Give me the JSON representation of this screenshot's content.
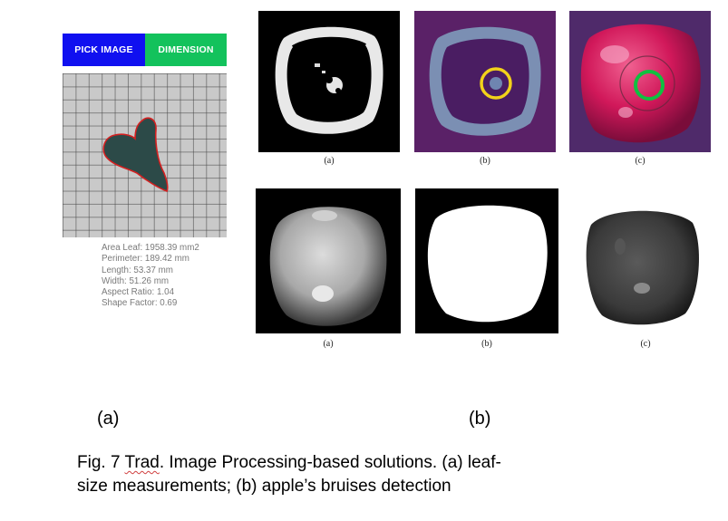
{
  "app": {
    "pick_image_label": "PICK IMAGE",
    "dimension_label": "DIMENSION",
    "measurements": [
      "Area Leaf: 1958.39 mm2",
      "Perimeter: 189.42 mm",
      "Length: 53.37 mm",
      "Width: 51.26 mm",
      "Aspect Ratio: 1.04",
      "Shape Factor: 0.69"
    ]
  },
  "apple_panels": {
    "row1_labels": [
      "(a)",
      "(b)",
      "(c)"
    ],
    "row2_labels": [
      "(a)",
      "(b)",
      "(c)"
    ]
  },
  "figure": {
    "label_a": "(a)",
    "label_b": "(b)",
    "caption_prefix": "Fig. 7 ",
    "caption_flagged_word": "Trad",
    "caption_line1_rest": ". Image Processing-based solutions. (a) leaf-",
    "caption_line2": "size measurements; (b) apple’s bruises detection"
  },
  "colors": {
    "pick_button": "#1010f0",
    "dimension_button": "#13c25c",
    "leaf_fill": "#2c4a48",
    "leaf_outline": "#d42020",
    "yellow_circle": "#f2d21a",
    "green_circle": "#10c040"
  }
}
